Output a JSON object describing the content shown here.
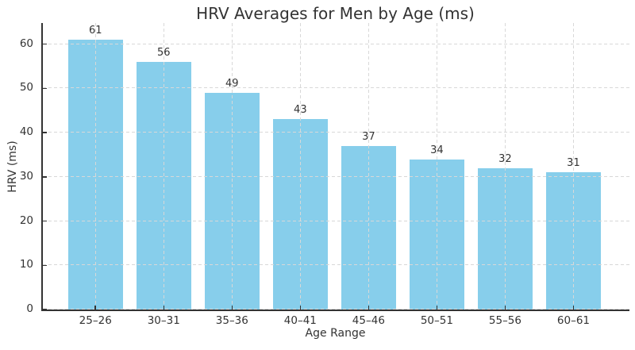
{
  "chart_data": {
    "type": "bar",
    "title": "HRV Averages for Men by Age (ms)",
    "xlabel": "Age Range",
    "ylabel": "HRV (ms)",
    "categories": [
      "25–26",
      "30–31",
      "35–36",
      "40–41",
      "45–46",
      "50–51",
      "55–56",
      "60–61"
    ],
    "values": [
      61,
      56,
      49,
      43,
      37,
      34,
      32,
      31
    ],
    "bar_value_labels": [
      "61",
      "56",
      "49",
      "43",
      "37",
      "34",
      "32",
      "31"
    ],
    "yticks": [
      0,
      10,
      20,
      30,
      40,
      50,
      60
    ],
    "ylim": [
      0,
      64.8
    ],
    "xlim": [
      -0.77,
      7.82
    ],
    "bar_width": 0.8,
    "grid": "dashed, horizontal and vertical, drawn over bars",
    "legend": "none",
    "colors": {
      "bar": "#87CEEB",
      "grid": "#d8d8d8",
      "axis": "#333333",
      "text": "#333333",
      "background": "#ffffff"
    }
  }
}
